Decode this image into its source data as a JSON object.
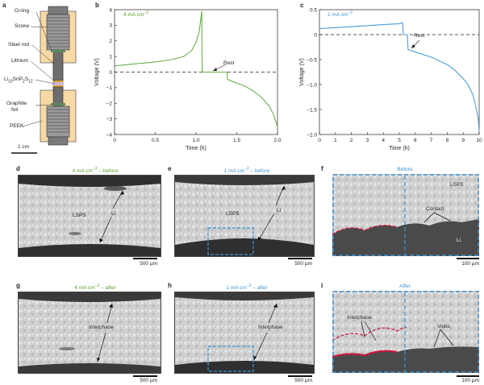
{
  "figure": {
    "panels": {
      "a": {
        "letter": "a",
        "labels": [
          "O-ring",
          "Screw",
          "Steel rod",
          "Lithium",
          "Li10SnP2S12",
          "Graphite foil",
          "PEEK"
        ],
        "electrolyte_label": {
          "main": "Li",
          "sub1": "10",
          "mid1": "SnP",
          "sub2": "2",
          "mid2": "S",
          "sub3": "12"
        },
        "graphite_label": [
          "Graphite",
          "foil"
        ],
        "scale_text": "1 cm"
      },
      "b": {
        "letter": "b",
        "current_label": "4 mA cm",
        "current_sup": "−2",
        "rest_label": "Rest"
      },
      "c": {
        "letter": "c",
        "current_label": "1 mA cm",
        "current_sup": "−2",
        "rest_label": "Rest"
      },
      "d": {
        "letter": "d",
        "title": "4 mA cm",
        "title_sup": "−2",
        "title_suffix": " – before",
        "labels": [
          "LSPS",
          "Li"
        ],
        "scale_text": "500 µm"
      },
      "e": {
        "letter": "e",
        "title": "1 mA cm",
        "title_sup": "−2",
        "title_suffix": " – before",
        "labels": [
          "LSPS",
          "Li"
        ],
        "scale_text": "500 µm"
      },
      "f": {
        "letter": "f",
        "title": "Before",
        "labels": [
          "LSPS",
          "Contact",
          "Li"
        ],
        "scale_text": "100 µm"
      },
      "g": {
        "letter": "g",
        "title": "4 mA cm",
        "title_sup": "−2",
        "title_suffix": " – after",
        "labels": [
          "Interphase"
        ],
        "scale_text": "500 µm"
      },
      "h": {
        "letter": "h",
        "title": "1 mA cm",
        "title_sup": "−2",
        "title_suffix": " – after",
        "labels": [
          "Interphase"
        ],
        "scale_text": "500 µm"
      },
      "i": {
        "letter": "i",
        "title": "After",
        "labels": [
          "Interphase",
          "Voids"
        ],
        "scale_text": "100 µm"
      }
    },
    "colors": {
      "green": "#6ab04c",
      "blue": "#4a9fd8",
      "red": "#d4143c",
      "title_green": "#5aa02c",
      "title_blue": "#3e94d1"
    }
  },
  "chart_data": [
    {
      "type": "line",
      "panel": "b",
      "xlabel": "Time (h)",
      "ylabel": "Voltage (V)",
      "xlim": [
        0,
        2.0
      ],
      "ylim": [
        -4,
        4
      ],
      "xticks": [
        0,
        0.5,
        1.0,
        1.5,
        2.0
      ],
      "xtick_labels": [
        "0",
        "0.5",
        "1.0",
        "1.5",
        "2.0"
      ],
      "yticks": [
        -4,
        -3,
        -2,
        -1,
        0,
        1,
        2,
        3,
        4
      ],
      "ytick_labels": [
        "−4",
        "−3",
        "−2",
        "−1",
        "0",
        "1",
        "2",
        "3",
        "4"
      ],
      "reference_line_y": 0,
      "series": [
        {
          "color": "#6ab04c",
          "x": [
            0,
            0.1,
            0.3,
            0.5,
            0.7,
            0.85,
            0.95,
            1.0,
            1.04,
            1.07,
            1.075,
            1.1,
            1.2,
            1.3,
            1.38,
            1.385,
            1.4,
            1.5,
            1.6,
            1.7,
            1.8,
            1.9,
            1.95,
            2.0
          ],
          "y": [
            0.4,
            0.45,
            0.55,
            0.65,
            0.8,
            1.0,
            1.4,
            1.9,
            2.6,
            3.9,
            0.0,
            0.0,
            0.0,
            0.0,
            0.0,
            -0.45,
            -0.5,
            -0.7,
            -0.9,
            -1.2,
            -1.6,
            -2.2,
            -2.7,
            -3.5
          ]
        }
      ]
    },
    {
      "type": "line",
      "panel": "c",
      "xlabel": "Time (h)",
      "ylabel": "Voltage (V)",
      "xlim": [
        0,
        10
      ],
      "ylim": [
        -2.0,
        0.5
      ],
      "xticks": [
        0,
        1,
        2,
        3,
        4,
        5,
        6,
        7,
        8,
        9,
        10
      ],
      "xtick_labels": [
        "0",
        "1",
        "2",
        "3",
        "4",
        "5",
        "6",
        "7",
        "8",
        "9",
        "10"
      ],
      "yticks": [
        -2.0,
        -1.5,
        -1.0,
        -0.5,
        0,
        0.5
      ],
      "ytick_labels": [
        "−2.0",
        "−1.5",
        "−1.0",
        "−0.5",
        "0",
        "0.5"
      ],
      "reference_line_y": 0,
      "series": [
        {
          "color": "#4a9fd8",
          "x": [
            0,
            1,
            2,
            3,
            4,
            5,
            5.2,
            5.25,
            5.3,
            5.5,
            5.55,
            6,
            7,
            8,
            8.5,
            9,
            9.3,
            9.6,
            9.8,
            9.95,
            10.0
          ],
          "y": [
            0.12,
            0.14,
            0.16,
            0.18,
            0.2,
            0.22,
            0.24,
            0.0,
            0.0,
            0.0,
            -0.3,
            -0.35,
            -0.45,
            -0.6,
            -0.72,
            -0.88,
            -1.0,
            -1.2,
            -1.45,
            -1.7,
            -1.95
          ]
        }
      ]
    }
  ]
}
